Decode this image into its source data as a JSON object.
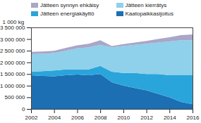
{
  "chart_data": {
    "type": "area",
    "stacked": true,
    "grid": false,
    "legend": "top",
    "y_label": "1 000 kg",
    "x": [
      2002,
      2003,
      2004,
      2005,
      2006,
      2007,
      2008,
      2009,
      2010,
      2011,
      2012,
      2013,
      2014,
      2015,
      2016
    ],
    "xlim": [
      2002,
      2016
    ],
    "xticks": [
      2002,
      2004,
      2006,
      2008,
      2010,
      2012,
      2014,
      2016
    ],
    "ylim": [
      0,
      3500000
    ],
    "yticks": [
      0,
      {
        "value": 500000,
        "label": "500 000"
      },
      {
        "value": 1000000,
        "label": "1 000 000"
      },
      {
        "value": 1500000,
        "label": "1 500 000"
      },
      {
        "value": 2000000,
        "label": "2 000 000"
      },
      {
        "value": 2500000,
        "label": "2 500 000"
      },
      {
        "value": 3000000,
        "label": "3 000 000"
      },
      {
        "value": 3500000,
        "label": "3 500 000"
      }
    ],
    "series": [
      {
        "name": "Jätteen synnyn ehkäisy",
        "color": "#a9a6c8",
        "values": [
          100000,
          100000,
          100000,
          120000,
          130000,
          150000,
          200000,
          50000,
          80000,
          100000,
          120000,
          150000,
          180000,
          220000,
          250000
        ]
      },
      {
        "name": "Jätteen kierrätys",
        "color": "#8fd0ea",
        "values": [
          750000,
          750000,
          750000,
          800000,
          900000,
          950000,
          900000,
          1050000,
          1150000,
          1200000,
          1300000,
          1350000,
          1450000,
          1500000,
          1500000
        ]
      },
      {
        "name": "Jätteen energiakäyttö",
        "color": "#2aa5db",
        "values": [
          150000,
          200000,
          250000,
          250000,
          220000,
          250000,
          350000,
          450000,
          550000,
          650000,
          700000,
          850000,
          950000,
          1150000,
          1250000
        ]
      },
      {
        "name": "Kaatopaikkasijoitus",
        "color": "#1b6fb2",
        "values": [
          1450000,
          1420000,
          1400000,
          1450000,
          1480000,
          1450000,
          1500000,
          1150000,
          1000000,
          900000,
          800000,
          650000,
          500000,
          300000,
          200000
        ]
      }
    ]
  }
}
